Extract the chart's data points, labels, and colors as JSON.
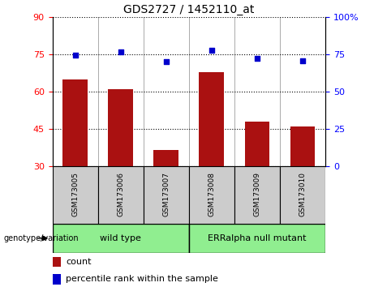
{
  "title": "GDS2727 / 1452110_at",
  "samples": [
    "GSM173005",
    "GSM173006",
    "GSM173007",
    "GSM173008",
    "GSM173009",
    "GSM173010"
  ],
  "counts": [
    65.0,
    61.0,
    36.5,
    68.0,
    48.0,
    46.0
  ],
  "percentiles": [
    74.5,
    77.0,
    70.5,
    78.0,
    72.5,
    71.0
  ],
  "left_ylim": [
    30,
    90
  ],
  "right_ylim": [
    0,
    100
  ],
  "left_yticks": [
    30,
    45,
    60,
    75,
    90
  ],
  "right_yticks": [
    0,
    25,
    50,
    75,
    100
  ],
  "right_yticklabels": [
    "0",
    "25",
    "50",
    "75",
    "100%"
  ],
  "bar_color": "#aa1111",
  "dot_color": "#0000cc",
  "groups": [
    {
      "label": "wild type",
      "indices": [
        0,
        1,
        2
      ]
    },
    {
      "label": "ERRalpha null mutant",
      "indices": [
        3,
        4,
        5
      ]
    }
  ],
  "legend_count_label": "count",
  "legend_pct_label": "percentile rank within the sample",
  "genotype_label": "genotype/variation"
}
